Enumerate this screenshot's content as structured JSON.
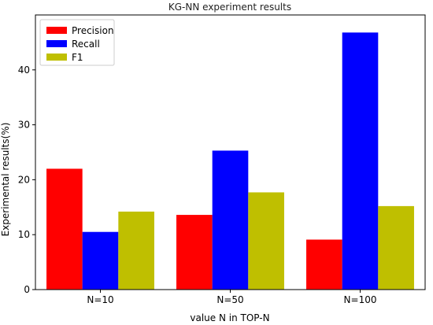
{
  "chart_data": {
    "type": "bar",
    "title": "KG-NN experiment results",
    "xlabel": "value N in TOP-N",
    "ylabel": "Experimental results(%)",
    "categories": [
      "N=10",
      "N=50",
      "N=100"
    ],
    "series": [
      {
        "name": "Precision",
        "color": "#ff0000",
        "values": [
          22.0,
          13.6,
          9.1
        ]
      },
      {
        "name": "Recall",
        "color": "#0000ff",
        "values": [
          10.5,
          25.3,
          46.8
        ]
      },
      {
        "name": "F1",
        "color": "#bfbf00",
        "values": [
          14.2,
          17.7,
          15.2
        ]
      }
    ],
    "ylim": [
      0,
      50
    ],
    "yticks": [
      0,
      10,
      20,
      30,
      40
    ],
    "grid": false,
    "legend_position": "top-left"
  }
}
